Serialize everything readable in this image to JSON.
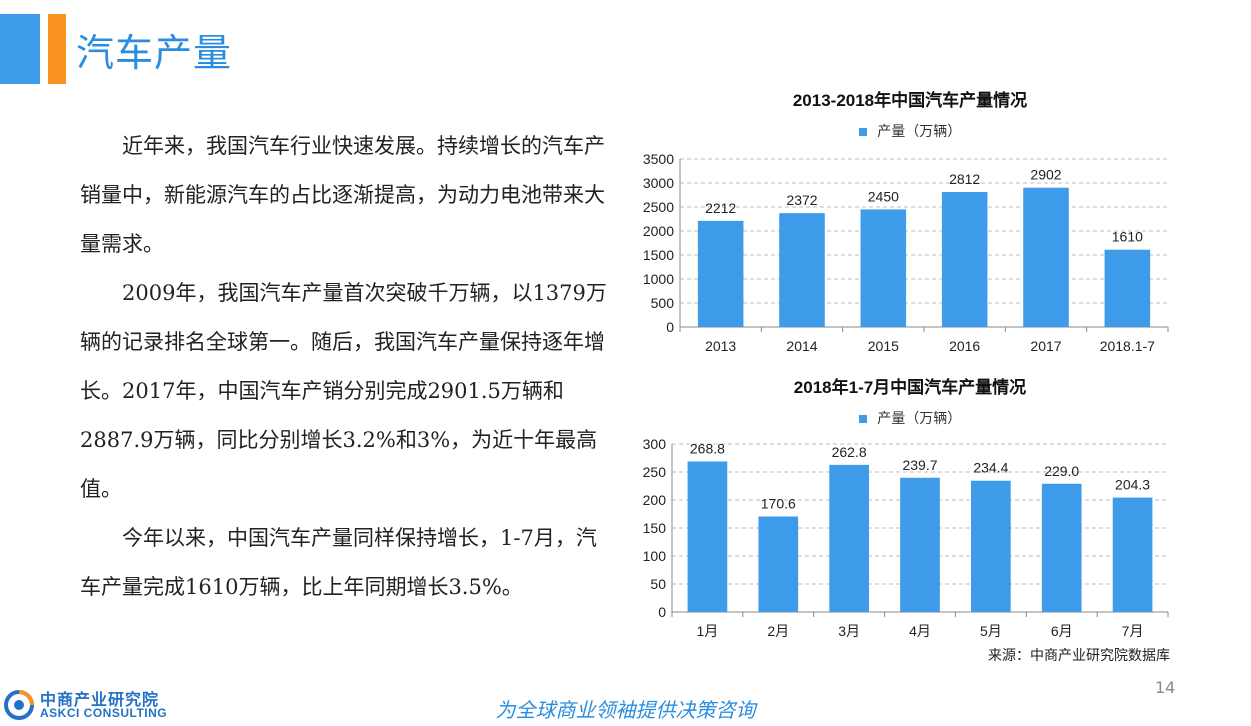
{
  "page": {
    "title": "汽车产量",
    "paragraphs": [
      "近年来，我国汽车行业快速发展。持续增长的汽车产销量中，新能源汽车的占比逐渐提高，为动力电池带来大量需求。",
      "2009年，我国汽车产量首次突破千万辆，以1379万辆的记录排名全球第一。随后，我国汽车产量保持逐年增长。2017年，中国汽车产销分别完成2901.5万辆和2887.9万辆，同比分别增长3.2%和3%，为近十年最高值。",
      "今年以来，中国汽车产量同样保持增长，1-7月，汽车产量完成1610万辆，比上年同期增长3.5%。"
    ],
    "source": "来源：中商产业研究院数据库",
    "page_number": "14",
    "slogan": "为全球商业领袖提供决策咨询",
    "logo_cn": "中商产业研究院",
    "logo_en": "ASKCI CONSULTING",
    "bar_color": "#3d9be9"
  },
  "chart_data": [
    {
      "type": "bar",
      "title": "2013-2018年中国汽车产量情况",
      "categories": [
        "2013",
        "2014",
        "2015",
        "2016",
        "2017",
        "2018.1-7"
      ],
      "series": [
        {
          "name": "产量（万辆）",
          "values": [
            2212,
            2372,
            2450,
            2812,
            2902,
            1610
          ]
        }
      ],
      "value_labels": [
        "2212",
        "2372",
        "2450",
        "2812",
        "2902",
        "1610"
      ],
      "ylim": [
        0,
        3500
      ],
      "yticks": [
        0,
        500,
        1000,
        1500,
        2000,
        2500,
        3000,
        3500
      ],
      "grid": true,
      "legend": "top"
    },
    {
      "type": "bar",
      "title": "2018年1-7月中国汽车产量情况",
      "categories": [
        "1月",
        "2月",
        "3月",
        "4月",
        "5月",
        "6月",
        "7月"
      ],
      "series": [
        {
          "name": "产量（万辆）",
          "values": [
            268.8,
            170.6,
            262.8,
            239.7,
            234.4,
            229.0,
            204.3
          ]
        }
      ],
      "value_labels": [
        "268.8",
        "170.6",
        "262.8",
        "239.7",
        "234.4",
        "229.0",
        "204.3"
      ],
      "ylim": [
        0,
        300
      ],
      "yticks": [
        0,
        50,
        100,
        150,
        200,
        250,
        300
      ],
      "grid": true,
      "legend": "top"
    }
  ]
}
